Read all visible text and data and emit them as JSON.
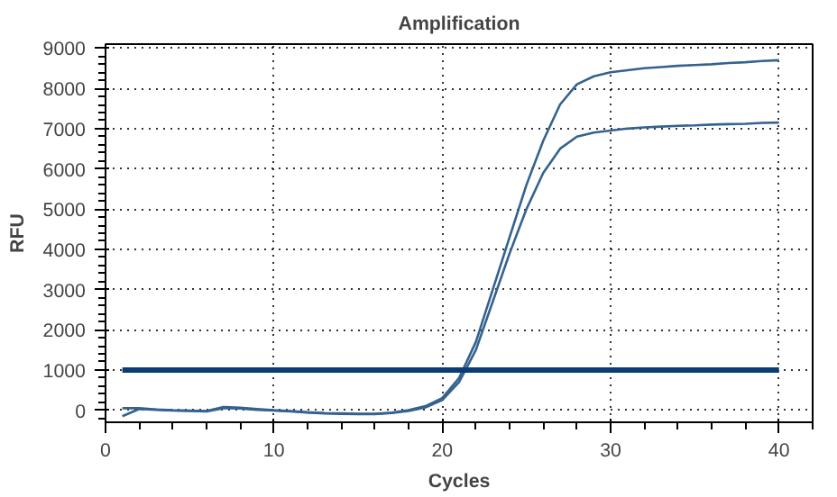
{
  "chart_data": {
    "type": "line",
    "title": "Amplification",
    "xlabel": "Cycles",
    "ylabel": "RFU",
    "xlim": [
      0,
      42
    ],
    "xticks": [
      0,
      10,
      20,
      30,
      40
    ],
    "ylim": [
      -300,
      9100
    ],
    "yticks": [
      0,
      1000,
      2000,
      3000,
      4000,
      5000,
      6000,
      7000,
      8000,
      9000
    ],
    "grid": true,
    "line_style": "solid",
    "marker": "none",
    "series": [
      {
        "color": "#35628f",
        "x": [
          1,
          2,
          3,
          4,
          5,
          6,
          7,
          8,
          9,
          10,
          11,
          12,
          13,
          14,
          15,
          16,
          17,
          18,
          19,
          20,
          21,
          22,
          23,
          24,
          25,
          26,
          27,
          28,
          29,
          30,
          31,
          32,
          33,
          34,
          35,
          36,
          37,
          38,
          39,
          40
        ],
        "values": [
          50,
          50,
          20,
          0,
          -10,
          -20,
          80,
          60,
          30,
          0,
          -20,
          -50,
          -70,
          -80,
          -90,
          -90,
          -60,
          0,
          100,
          300,
          800,
          1700,
          3000,
          4300,
          5600,
          6700,
          7600,
          8100,
          8300,
          8400,
          8450,
          8500,
          8530,
          8560,
          8580,
          8600,
          8630,
          8650,
          8680,
          8700
        ]
      },
      {
        "color": "#35628f",
        "x": [
          1,
          2,
          3,
          4,
          5,
          6,
          7,
          8,
          9,
          10,
          11,
          12,
          13,
          14,
          15,
          16,
          17,
          18,
          19,
          20,
          21,
          22,
          23,
          24,
          25,
          26,
          27,
          28,
          29,
          30,
          31,
          32,
          33,
          34,
          35,
          36,
          37,
          38,
          39,
          40
        ],
        "values": [
          -150,
          30,
          10,
          -10,
          -20,
          -30,
          50,
          40,
          10,
          -10,
          -30,
          -60,
          -80,
          -90,
          -100,
          -100,
          -70,
          -20,
          70,
          250,
          700,
          1500,
          2700,
          3900,
          5000,
          5900,
          6500,
          6800,
          6900,
          6950,
          7000,
          7030,
          7050,
          7070,
          7080,
          7100,
          7110,
          7120,
          7140,
          7150
        ]
      },
      {
        "color": "#0a3d73",
        "x": [
          1,
          40
        ],
        "values": [
          1000,
          1000
        ]
      }
    ]
  }
}
